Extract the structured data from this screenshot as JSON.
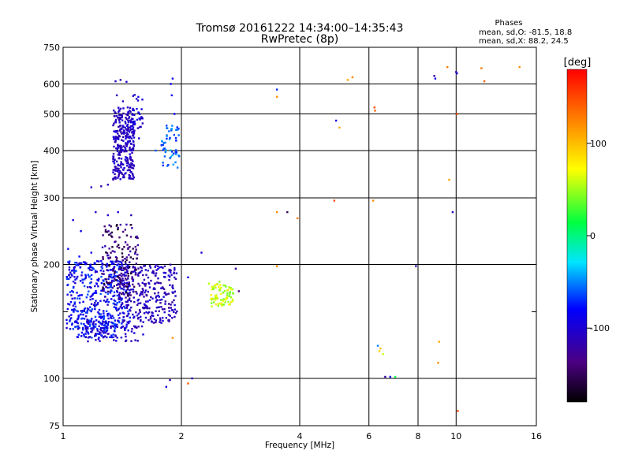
{
  "chart_data": {
    "type": "scatter",
    "title": "Tromsø 20161222 14:34:00–14:35:43",
    "subtitle": "RwPretec (8p)",
    "xlabel": "Frequency [MHz]",
    "ylabel": "Stationary phase Virtual Height [km]",
    "xscale": "log",
    "yscale": "log",
    "xlim": [
      1,
      16
    ],
    "ylim": [
      75,
      750
    ],
    "x_ticks": [
      1,
      2,
      4,
      6,
      8,
      10,
      16
    ],
    "x_tick_labels": [
      "1",
      "2",
      "4",
      "6",
      "8",
      "10",
      "16"
    ],
    "y_ticks": [
      75,
      100,
      200,
      300,
      400,
      500,
      600,
      750
    ],
    "y_tick_labels": [
      "75",
      "100",
      "200",
      "300",
      "400",
      "500",
      "600",
      "750"
    ],
    "y_minor_ticks": [
      150
    ],
    "grid": true,
    "stats": {
      "heading": "Phases",
      "line1": "mean, sd,O: -81.5, 18.8",
      "line2": "mean, sd,X: 88.2, 24.5"
    },
    "colorbar": {
      "label": "[deg]",
      "range": [
        -180,
        180
      ],
      "ticks": [
        100,
        0,
        -100
      ],
      "tick_labels": [
        "100",
        "0",
        "-100"
      ]
    },
    "series": [
      {
        "description": "scattered points: x = frequency MHz, y = virtual height km, c = phase deg",
        "points": [
          [
            1.36,
            610,
            -105
          ],
          [
            1.4,
            615,
            -110
          ],
          [
            1.45,
            608,
            -100
          ],
          [
            1.9,
            620,
            -90
          ],
          [
            1.88,
            600,
            -85
          ],
          [
            1.37,
            560,
            -110
          ],
          [
            1.42,
            540,
            -112
          ],
          [
            1.46,
            520,
            -108
          ],
          [
            1.5,
            500,
            -100
          ],
          [
            1.89,
            560,
            -85
          ],
          [
            1.92,
            500,
            -80
          ],
          [
            1.96,
            455,
            -60
          ],
          [
            1.86,
            450,
            -55
          ],
          [
            1.82,
            420,
            -50
          ],
          [
            1.72,
            400,
            -60
          ],
          [
            1.18,
            320,
            -110
          ],
          [
            1.25,
            322,
            -115
          ],
          [
            1.3,
            325,
            -112
          ],
          [
            1.21,
            275,
            -105
          ],
          [
            1.3,
            270,
            -100
          ],
          [
            1.38,
            275,
            -95
          ],
          [
            1.49,
            270,
            -110
          ],
          [
            1.38,
            250,
            -120
          ],
          [
            1.45,
            255,
            -115
          ],
          [
            1.06,
            262,
            -95
          ],
          [
            1.11,
            245,
            -90
          ],
          [
            1.03,
            220,
            -85
          ],
          [
            1.1,
            210,
            -80
          ],
          [
            1.18,
            215,
            -90
          ],
          [
            1.26,
            222,
            -112
          ],
          [
            1.36,
            230,
            -135
          ],
          [
            1.42,
            205,
            -140
          ],
          [
            1.47,
            212,
            -125
          ],
          [
            1.55,
            225,
            -118
          ],
          [
            2.08,
            185,
            -90
          ],
          [
            2.25,
            215,
            -100
          ],
          [
            2.75,
            195,
            -120
          ],
          [
            2.13,
            100,
            -105
          ],
          [
            1.87,
            99,
            -115
          ],
          [
            1.83,
            95,
            -95
          ],
          [
            2.35,
            178,
            55
          ],
          [
            2.42,
            175,
            50
          ],
          [
            2.5,
            180,
            45
          ],
          [
            2.62,
            168,
            40
          ],
          [
            2.7,
            172,
            30
          ],
          [
            2.45,
            165,
            60
          ],
          [
            2.38,
            162,
            75
          ],
          [
            2.55,
            160,
            70
          ],
          [
            2.6,
            163,
            65
          ],
          [
            2.45,
            157,
            85
          ],
          [
            2.52,
            158,
            90
          ],
          [
            2.65,
            165,
            35
          ],
          [
            2.8,
            170,
            -140
          ],
          [
            2.58,
            176,
            48
          ],
          [
            2.5,
            171,
            52
          ],
          [
            3.5,
            580,
            -70
          ],
          [
            3.5,
            555,
            120
          ],
          [
            4.95,
            480,
            -95
          ],
          [
            5.05,
            460,
            110
          ],
          [
            6.2,
            520,
            150
          ],
          [
            6.22,
            510,
            140
          ],
          [
            5.45,
            625,
            125
          ],
          [
            5.3,
            615,
            110
          ],
          [
            8.8,
            630,
            -120
          ],
          [
            8.85,
            620,
            -90
          ],
          [
            9.5,
            665,
            130
          ],
          [
            10.0,
            645,
            -110
          ],
          [
            10.05,
            640,
            -100
          ],
          [
            11.6,
            660,
            130
          ],
          [
            11.8,
            610,
            140
          ],
          [
            14.5,
            665,
            120
          ],
          [
            10.05,
            500,
            150
          ],
          [
            9.6,
            335,
            110
          ],
          [
            9.8,
            275,
            -110
          ],
          [
            3.5,
            275,
            120
          ],
          [
            3.72,
            275,
            -150
          ],
          [
            3.95,
            265,
            130
          ],
          [
            4.9,
            295,
            150
          ],
          [
            6.15,
            295,
            120
          ],
          [
            7.9,
            198,
            -110
          ],
          [
            3.5,
            198,
            125
          ],
          [
            6.32,
            122,
            -50
          ],
          [
            6.42,
            120,
            100
          ],
          [
            6.38,
            118,
            90
          ],
          [
            6.52,
            116,
            60
          ],
          [
            6.6,
            101,
            -120
          ],
          [
            6.8,
            101,
            -90
          ],
          [
            7.0,
            101,
            15
          ],
          [
            9.0,
            110,
            120
          ],
          [
            9.05,
            125,
            110
          ],
          [
            10.1,
            82,
            150
          ],
          [
            2.08,
            97,
            140
          ],
          [
            1.9,
            128,
            120
          ]
        ]
      }
    ],
    "clusters": [
      {
        "xr": [
          1.34,
          1.52
        ],
        "yr": [
          335,
          520
        ],
        "cr": [
          -120,
          -95
        ],
        "n": 320
      },
      {
        "xr": [
          1.5,
          1.6
        ],
        "yr": [
          430,
          570
        ],
        "cr": [
          -110,
          -85
        ],
        "n": 30
      },
      {
        "xr": [
          1.78,
          1.98
        ],
        "yr": [
          360,
          470
        ],
        "cr": [
          -75,
          -40
        ],
        "n": 50
      },
      {
        "xr": [
          1.02,
          1.48
        ],
        "yr": [
          135,
          205
        ],
        "cr": [
          -110,
          -60
        ],
        "n": 430
      },
      {
        "xr": [
          1.38,
          1.95
        ],
        "yr": [
          140,
          200
        ],
        "cr": [
          -125,
          -95
        ],
        "n": 290
      },
      {
        "xr": [
          1.25,
          1.55
        ],
        "yr": [
          165,
          255
        ],
        "cr": [
          -170,
          -115
        ],
        "n": 150
      },
      {
        "xr": [
          1.08,
          1.36
        ],
        "yr": [
          128,
          148
        ],
        "cr": [
          -95,
          -60
        ],
        "n": 90
      },
      {
        "xr": [
          1.14,
          1.6
        ],
        "yr": [
          125,
          142
        ],
        "cr": [
          -120,
          -95
        ],
        "n": 70
      },
      {
        "xr": [
          2.38,
          2.72
        ],
        "yr": [
          155,
          178
        ],
        "cr": [
          35,
          85
        ],
        "n": 70
      }
    ]
  }
}
